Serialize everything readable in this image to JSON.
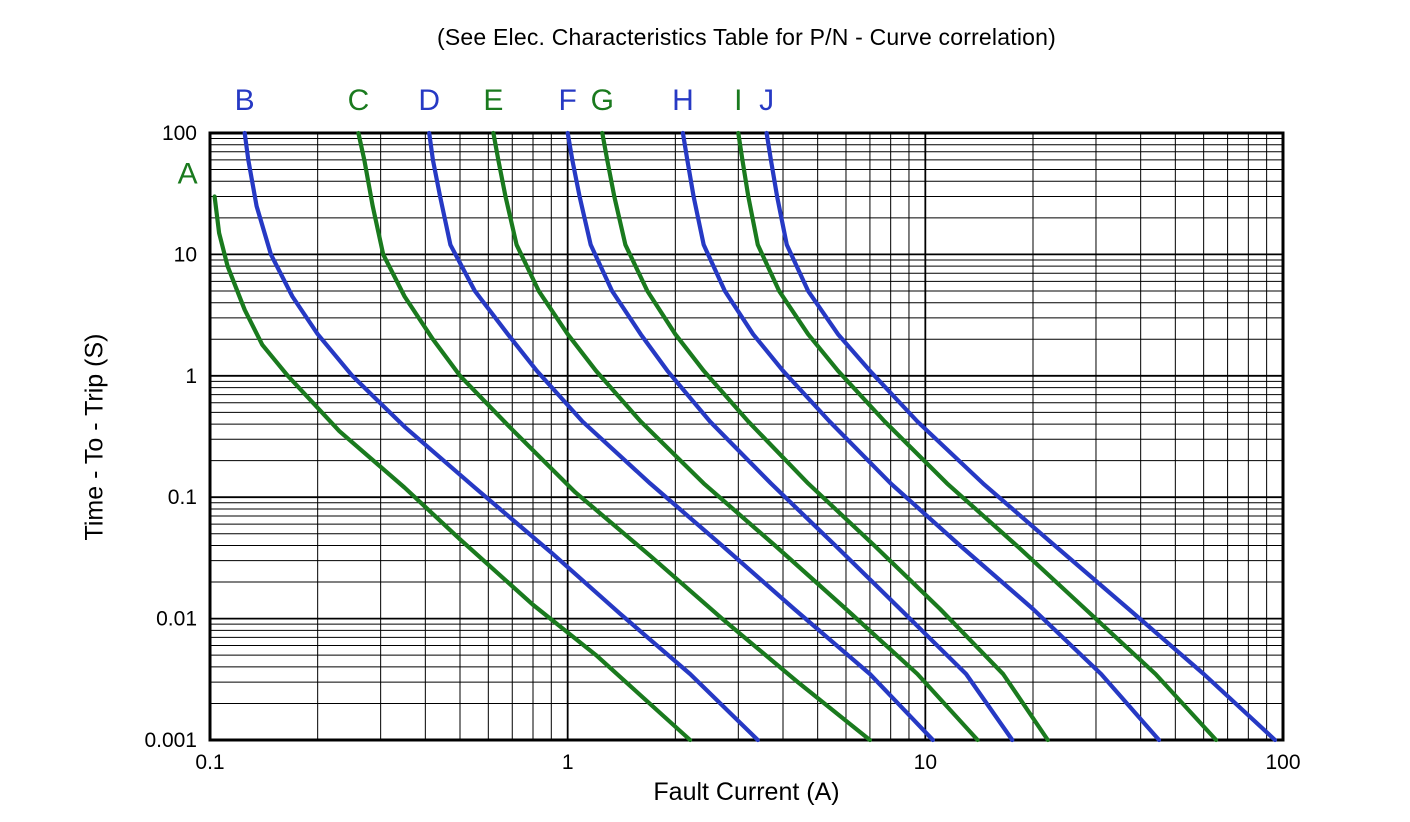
{
  "chart": {
    "title": "(See Elec. Characteristics Table for P/N - Curve correlation)",
    "xlabel": "Fault Current (A)",
    "ylabel": "Time - To - Trip (S)"
  },
  "chart_data": {
    "type": "line",
    "title": "(See Elec. Characteristics Table for P/N - Curve correlation)",
    "xlabel": "Fault Current (A)",
    "ylabel": "Time - To - Trip (S)",
    "x_scale": "log",
    "y_scale": "log",
    "xlim": [
      0.1,
      100
    ],
    "ylim": [
      0.001,
      100
    ],
    "x_ticks": [
      0.1,
      1,
      10,
      100
    ],
    "x_tick_labels": [
      "0.1",
      "1",
      "10",
      "100"
    ],
    "y_ticks": [
      100,
      10,
      1,
      0.1,
      0.01,
      0.001
    ],
    "y_tick_labels": [
      "100",
      "10",
      "1",
      "0.1",
      "0.01",
      "0.001"
    ],
    "grid": "full log-log grid, major and minor lines, black",
    "legend_position": "letters above and beside curve tops",
    "colors": {
      "green": "#1a7a1e",
      "blue": "#2639c4",
      "grid": "#000000",
      "text": "#000000"
    },
    "series": [
      {
        "name": "A",
        "color": "green",
        "points": [
          [
            0.103,
            30
          ],
          [
            0.106,
            15
          ],
          [
            0.112,
            8
          ],
          [
            0.125,
            3.5
          ],
          [
            0.14,
            1.8
          ],
          [
            0.165,
            1
          ],
          [
            0.23,
            0.35
          ],
          [
            0.35,
            0.12
          ],
          [
            0.5,
            0.045
          ],
          [
            0.8,
            0.013
          ],
          [
            1.2,
            0.005
          ],
          [
            2.2,
            0.001
          ]
        ]
      },
      {
        "name": "B",
        "color": "blue",
        "points": [
          [
            0.125,
            100
          ],
          [
            0.128,
            60
          ],
          [
            0.135,
            25
          ],
          [
            0.148,
            10
          ],
          [
            0.17,
            4.5
          ],
          [
            0.2,
            2.2
          ],
          [
            0.25,
            1
          ],
          [
            0.35,
            0.38
          ],
          [
            0.55,
            0.12
          ],
          [
            0.9,
            0.035
          ],
          [
            1.4,
            0.011
          ],
          [
            2.2,
            0.0035
          ],
          [
            3.4,
            0.001
          ]
        ]
      },
      {
        "name": "C",
        "color": "green",
        "points": [
          [
            0.26,
            100
          ],
          [
            0.27,
            60
          ],
          [
            0.285,
            25
          ],
          [
            0.305,
            10
          ],
          [
            0.35,
            4.5
          ],
          [
            0.42,
            2
          ],
          [
            0.5,
            1
          ],
          [
            0.7,
            0.36
          ],
          [
            1.05,
            0.11
          ],
          [
            1.7,
            0.033
          ],
          [
            2.7,
            0.01
          ],
          [
            4.4,
            0.003
          ],
          [
            7.0,
            0.001
          ]
        ]
      },
      {
        "name": "D",
        "color": "blue",
        "points": [
          [
            0.41,
            100
          ],
          [
            0.42,
            60
          ],
          [
            0.44,
            30
          ],
          [
            0.47,
            12
          ],
          [
            0.55,
            5
          ],
          [
            0.68,
            2.2
          ],
          [
            0.82,
            1.1
          ],
          [
            1.1,
            0.42
          ],
          [
            1.7,
            0.13
          ],
          [
            2.7,
            0.04
          ],
          [
            4.3,
            0.012
          ],
          [
            7.0,
            0.0035
          ],
          [
            10.5,
            0.001
          ]
        ]
      },
      {
        "name": "E",
        "color": "green",
        "points": [
          [
            0.62,
            100
          ],
          [
            0.64,
            60
          ],
          [
            0.67,
            30
          ],
          [
            0.72,
            12
          ],
          [
            0.83,
            5
          ],
          [
            1.0,
            2.2
          ],
          [
            1.2,
            1.1
          ],
          [
            1.6,
            0.42
          ],
          [
            2.4,
            0.13
          ],
          [
            3.8,
            0.04
          ],
          [
            6.0,
            0.012
          ],
          [
            9.5,
            0.0035
          ],
          [
            14,
            0.001
          ]
        ]
      },
      {
        "name": "F",
        "color": "blue",
        "points": [
          [
            1.0,
            100
          ],
          [
            1.03,
            60
          ],
          [
            1.08,
            30
          ],
          [
            1.16,
            12
          ],
          [
            1.33,
            5
          ],
          [
            1.6,
            2.2
          ],
          [
            1.9,
            1.1
          ],
          [
            2.5,
            0.42
          ],
          [
            3.7,
            0.13
          ],
          [
            5.6,
            0.04
          ],
          [
            8.5,
            0.012
          ],
          [
            13,
            0.0035
          ],
          [
            17.5,
            0.001
          ]
        ]
      },
      {
        "name": "G",
        "color": "green",
        "points": [
          [
            1.25,
            100
          ],
          [
            1.29,
            60
          ],
          [
            1.35,
            30
          ],
          [
            1.45,
            12
          ],
          [
            1.67,
            5
          ],
          [
            2.0,
            2.2
          ],
          [
            2.4,
            1.1
          ],
          [
            3.2,
            0.42
          ],
          [
            4.7,
            0.13
          ],
          [
            7.2,
            0.04
          ],
          [
            11,
            0.012
          ],
          [
            16.5,
            0.0035
          ],
          [
            22,
            0.001
          ]
        ]
      },
      {
        "name": "H",
        "color": "blue",
        "points": [
          [
            2.1,
            100
          ],
          [
            2.16,
            60
          ],
          [
            2.25,
            30
          ],
          [
            2.4,
            12
          ],
          [
            2.75,
            5
          ],
          [
            3.3,
            2.2
          ],
          [
            4.0,
            1.1
          ],
          [
            5.4,
            0.42
          ],
          [
            8.0,
            0.13
          ],
          [
            12.5,
            0.04
          ],
          [
            20,
            0.012
          ],
          [
            31,
            0.0035
          ],
          [
            45,
            0.001
          ]
        ]
      },
      {
        "name": "I",
        "color": "green",
        "points": [
          [
            3.0,
            100
          ],
          [
            3.08,
            60
          ],
          [
            3.2,
            30
          ],
          [
            3.4,
            12
          ],
          [
            3.9,
            5
          ],
          [
            4.7,
            2.2
          ],
          [
            5.7,
            1.1
          ],
          [
            7.7,
            0.42
          ],
          [
            11.5,
            0.13
          ],
          [
            18,
            0.04
          ],
          [
            28,
            0.012
          ],
          [
            44,
            0.0035
          ],
          [
            65,
            0.001
          ]
        ]
      },
      {
        "name": "J",
        "color": "blue",
        "points": [
          [
            3.6,
            100
          ],
          [
            3.7,
            60
          ],
          [
            3.85,
            30
          ],
          [
            4.1,
            12
          ],
          [
            4.7,
            5
          ],
          [
            5.7,
            2.2
          ],
          [
            7.0,
            1.1
          ],
          [
            9.5,
            0.42
          ],
          [
            14.5,
            0.13
          ],
          [
            23,
            0.04
          ],
          [
            37,
            0.012
          ],
          [
            60,
            0.0035
          ],
          [
            95,
            0.001
          ]
        ]
      }
    ]
  }
}
